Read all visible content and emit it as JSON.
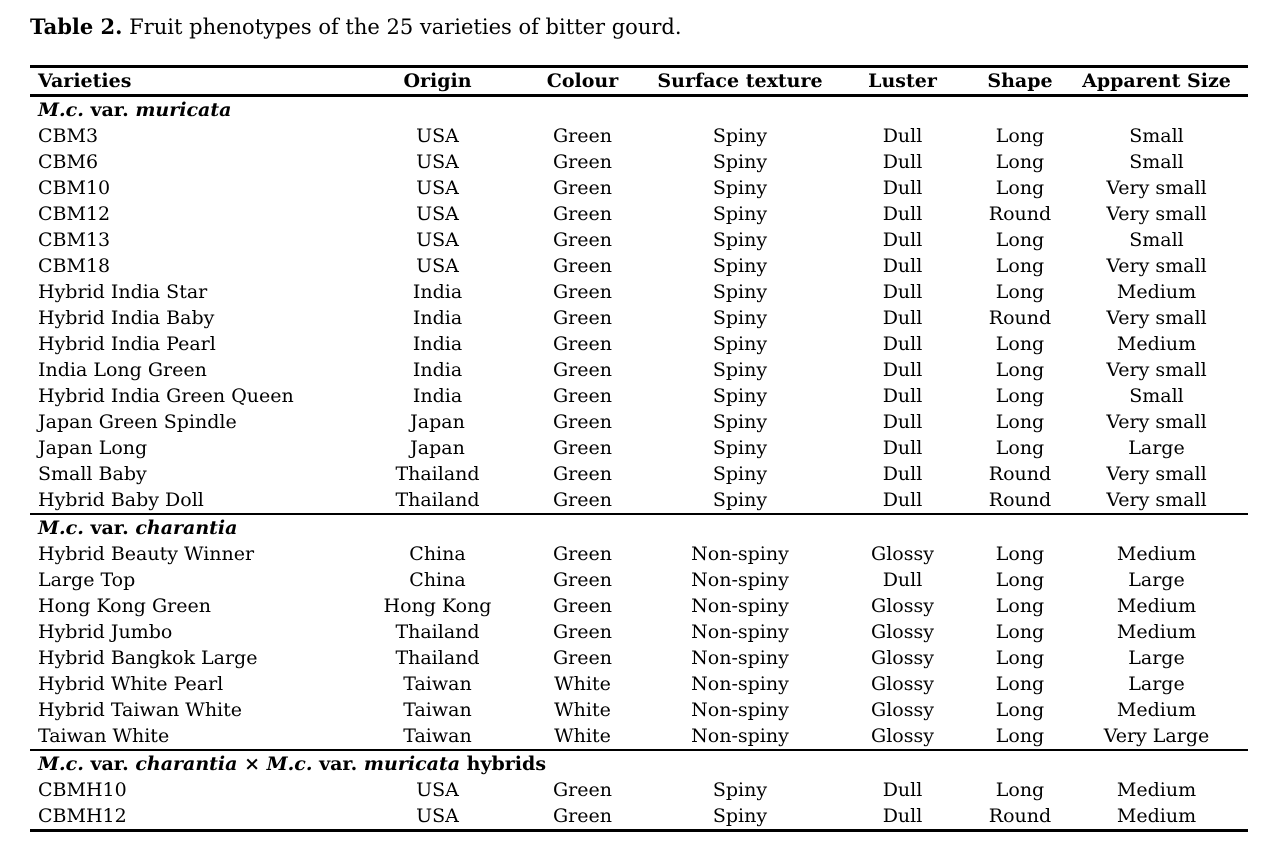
{
  "title": {
    "label": "Table 2.",
    "text": " Fruit phenotypes of the 25 varieties of bitter gourd."
  },
  "table": {
    "columns": [
      "Varieties",
      "Origin",
      "Colour",
      "Surface texture",
      "Luster",
      "Shape",
      "Apparent Size"
    ],
    "sections": [
      {
        "header": [
          {
            "t": "M.c.",
            "i": true
          },
          {
            "t": " var. ",
            "i": false
          },
          {
            "t": "muricata",
            "i": true
          }
        ],
        "rows": [
          [
            "CBM3",
            "USA",
            "Green",
            "Spiny",
            "Dull",
            "Long",
            "Small"
          ],
          [
            "CBM6",
            "USA",
            "Green",
            "Spiny",
            "Dull",
            "Long",
            "Small"
          ],
          [
            "CBM10",
            "USA",
            "Green",
            "Spiny",
            "Dull",
            "Long",
            "Very small"
          ],
          [
            "CBM12",
            "USA",
            "Green",
            "Spiny",
            "Dull",
            "Round",
            "Very small"
          ],
          [
            "CBM13",
            "USA",
            "Green",
            "Spiny",
            "Dull",
            "Long",
            "Small"
          ],
          [
            "CBM18",
            "USA",
            "Green",
            "Spiny",
            "Dull",
            "Long",
            "Very small"
          ],
          [
            "Hybrid India Star",
            "India",
            "Green",
            "Spiny",
            "Dull",
            "Long",
            "Medium"
          ],
          [
            "Hybrid India Baby",
            "India",
            "Green",
            "Spiny",
            "Dull",
            "Round",
            "Very small"
          ],
          [
            "Hybrid India Pearl",
            "India",
            "Green",
            "Spiny",
            "Dull",
            "Long",
            "Medium"
          ],
          [
            "India Long Green",
            "India",
            "Green",
            "Spiny",
            "Dull",
            "Long",
            "Very small"
          ],
          [
            "Hybrid India Green Queen",
            "India",
            "Green",
            "Spiny",
            "Dull",
            "Long",
            "Small"
          ],
          [
            "Japan Green Spindle",
            "Japan",
            "Green",
            "Spiny",
            "Dull",
            "Long",
            "Very small"
          ],
          [
            "Japan Long",
            "Japan",
            "Green",
            "Spiny",
            "Dull",
            "Long",
            "Large"
          ],
          [
            "Small Baby",
            "Thailand",
            "Green",
            "Spiny",
            "Dull",
            "Round",
            "Very small"
          ],
          [
            "Hybrid Baby Doll",
            "Thailand",
            "Green",
            "Spiny",
            "Dull",
            "Round",
            "Very small"
          ]
        ]
      },
      {
        "header": [
          {
            "t": "M.c.",
            "i": true
          },
          {
            "t": " var. ",
            "i": false
          },
          {
            "t": "charantia",
            "i": true
          }
        ],
        "rows": [
          [
            "Hybrid Beauty Winner",
            "China",
            "Green",
            "Non-spiny",
            "Glossy",
            "Long",
            "Medium"
          ],
          [
            "Large Top",
            "China",
            "Green",
            "Non-spiny",
            "Dull",
            "Long",
            "Large"
          ],
          [
            "Hong Kong Green",
            "Hong Kong",
            "Green",
            "Non-spiny",
            "Glossy",
            "Long",
            "Medium"
          ],
          [
            "Hybrid Jumbo",
            "Thailand",
            "Green",
            "Non-spiny",
            "Glossy",
            "Long",
            "Medium"
          ],
          [
            "Hybrid Bangkok Large",
            "Thailand",
            "Green",
            "Non-spiny",
            "Glossy",
            "Long",
            "Large"
          ],
          [
            "Hybrid White Pearl",
            "Taiwan",
            "White",
            "Non-spiny",
            "Glossy",
            "Long",
            "Large"
          ],
          [
            "Hybrid Taiwan White",
            "Taiwan",
            "White",
            "Non-spiny",
            "Glossy",
            "Long",
            "Medium"
          ],
          [
            "Taiwan White",
            "Taiwan",
            "White",
            "Non-spiny",
            "Glossy",
            "Long",
            "Very Large"
          ]
        ]
      },
      {
        "header": [
          {
            "t": "M.c.",
            "i": true
          },
          {
            "t": " var. ",
            "i": false
          },
          {
            "t": "charantia",
            "i": true
          },
          {
            "t": " × ",
            "i": false
          },
          {
            "t": "M.c.",
            "i": true
          },
          {
            "t": " var. ",
            "i": false
          },
          {
            "t": "muricata",
            "i": true
          },
          {
            "t": " hybrids",
            "i": false
          }
        ],
        "rows": [
          [
            "CBMH10",
            "USA",
            "Green",
            "Spiny",
            "Dull",
            "Long",
            "Medium"
          ],
          [
            "CBMH12",
            "USA",
            "Green",
            "Spiny",
            "Dull",
            "Round",
            "Medium"
          ]
        ]
      }
    ]
  }
}
